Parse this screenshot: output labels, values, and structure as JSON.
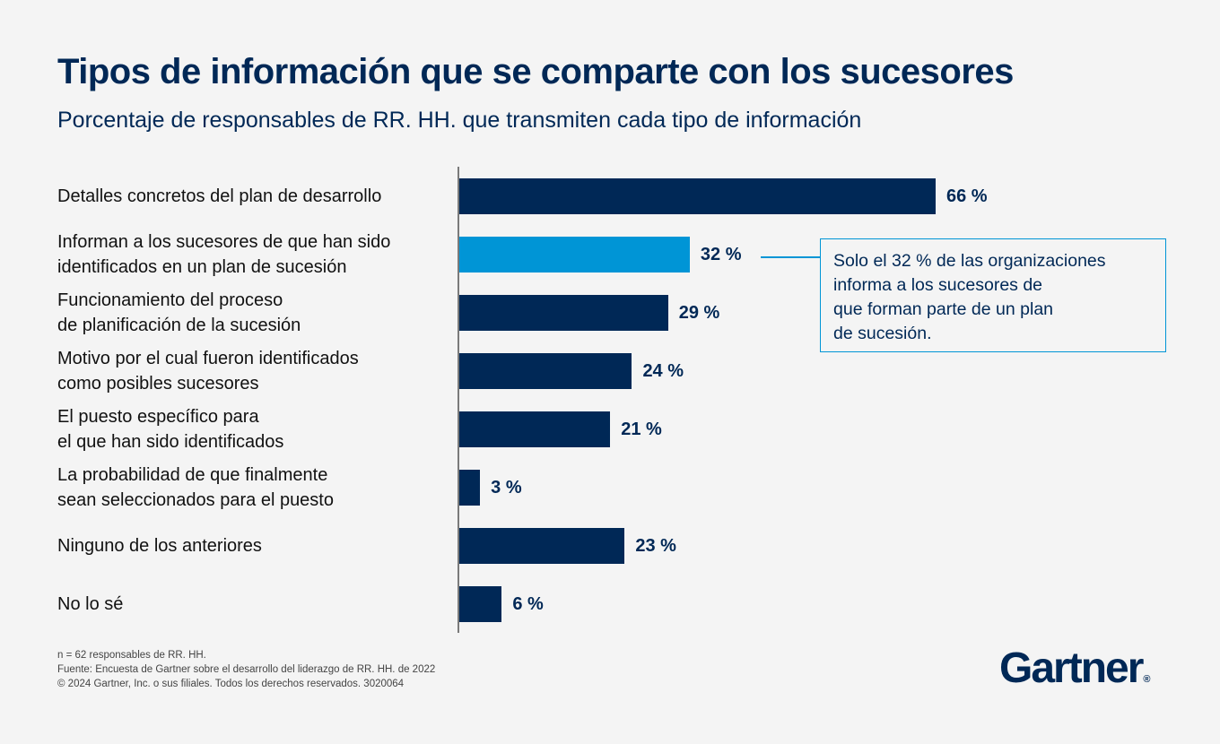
{
  "title": "Tipos de información que se comparte con los sucesores",
  "subtitle": "Porcentaje de responsables de RR. HH. que transmiten cada tipo de información",
  "colors": {
    "primary": "#002856",
    "highlight": "#0095d6",
    "background": "#f4f4f4"
  },
  "chart_data": {
    "type": "bar",
    "orientation": "horizontal",
    "title": "Tipos de información que se comparte con los sucesores",
    "subtitle": "Porcentaje de responsables de RR. HH. que transmiten cada tipo de información",
    "xlim": [
      0,
      100
    ],
    "unit": "%",
    "categories": [
      [
        "Detalles concretos del plan de desarrollo"
      ],
      [
        "Informan a los sucesores de que han sido",
        "identificados en un plan de sucesión"
      ],
      [
        "Funcionamiento del proceso",
        "de planificación de la sucesión"
      ],
      [
        "Motivo por el cual fueron identificados",
        "como posibles sucesores"
      ],
      [
        "El puesto específico para",
        "el que han sido identificados"
      ],
      [
        "La probabilidad de que finalmente",
        "sean seleccionados para el puesto"
      ],
      [
        "Ninguno de los anteriores"
      ],
      [
        "No lo sé"
      ]
    ],
    "values": [
      66,
      32,
      29,
      24,
      21,
      3,
      23,
      6
    ],
    "value_labels": [
      "66 %",
      "32 %",
      "29 %",
      "24 %",
      "21 %",
      "3 %",
      "23 %",
      "6 %"
    ],
    "highlighted_index": 1,
    "annotation": [
      "Solo el 32 % de las organizaciones",
      "informa a los sucesores de",
      "que forman parte de un plan",
      "de sucesión."
    ]
  },
  "footnotes": [
    "n = 62 responsables de RR. HH.",
    "Fuente: Encuesta de Gartner sobre el desarrollo del liderazgo de RR. HH. de 2022",
    "© 2024 Gartner, Inc. o sus filiales. Todos los derechos reservados. 3020064"
  ],
  "logo": {
    "text": "Gartner",
    "mark": "®"
  }
}
